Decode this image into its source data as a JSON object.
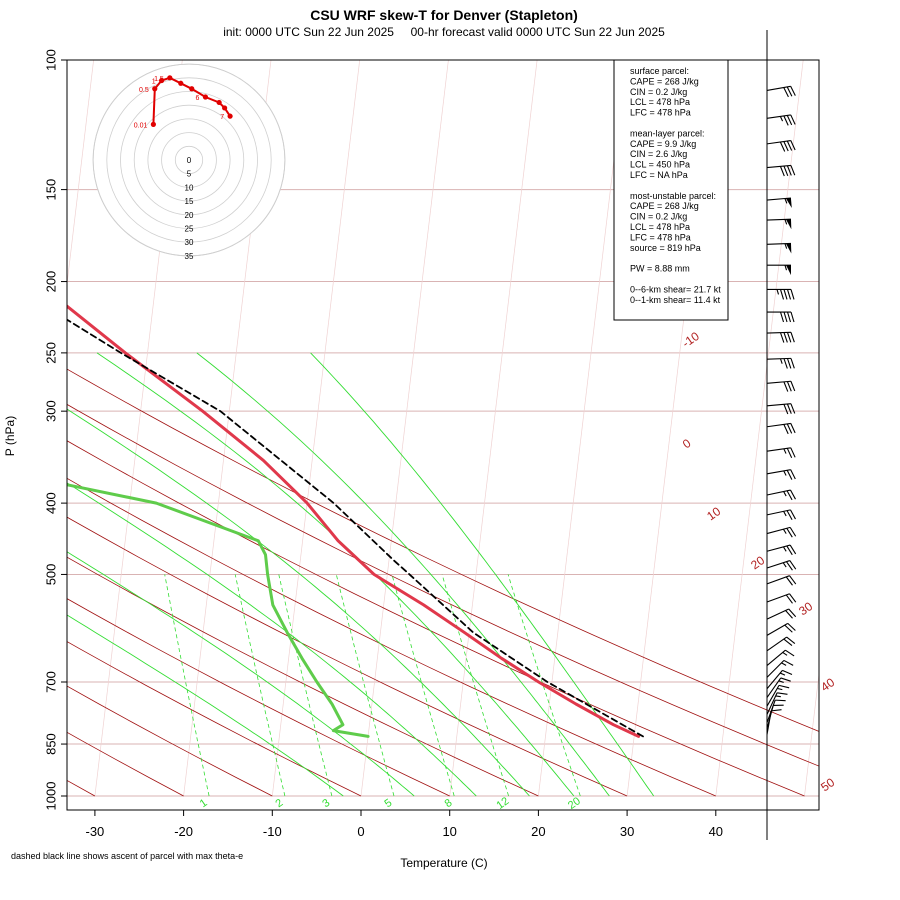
{
  "header": {
    "title": "CSU WRF skew-T for Denver (Stapleton)",
    "subtitle": "init: 0000 UTC Sun 22 Jun 2025     00-hr forecast valid 0000 UTC Sun 22 Jun 2025"
  },
  "footnote": "dashed black line shows ascent of parcel with max theta-e",
  "colors": {
    "temperature": "#e0384b",
    "dewpoint": "#5fcc4b",
    "parcel": "#000000",
    "isotherm": "#a01010",
    "mixing_ratio": "#33dd33",
    "moist_adiabat": "#33dd33",
    "isobar": "#d9b3b3",
    "hodograph": "#e00000"
  },
  "info_box": {
    "lines": [
      "surface parcel:",
      "CAPE = 268 J/kg",
      "CIN = 0.2 J/kg",
      "LCL = 478 hPa",
      "LFC = 478 hPa",
      "",
      "mean-layer parcel:",
      "CAPE = 9.9 J/kg",
      "CIN = 2.6 J/kg",
      "LCL = 450 hPa",
      "LFC = NA hPa",
      "",
      "most-unstable parcel:",
      "CAPE = 268 J/kg",
      "CIN = 0.2 J/kg",
      "LCL = 478 hPa",
      "LFC = 478 hPa",
      "source = 819 hPa",
      "",
      "PW =  8.88 mm",
      "",
      "0--6-km shear= 21.7 kt",
      "0--1-km shear= 11.4 kt"
    ]
  },
  "chart_data": {
    "type": "line",
    "xlabel": "Temperature (C)",
    "ylabel": "P (hPa)",
    "xlim": [
      -33,
      51
    ],
    "ylim": [
      1000,
      100
    ],
    "y_scale": "log",
    "x_ticks": [
      -30,
      -20,
      -10,
      0,
      10,
      20,
      30,
      40
    ],
    "y_ticks": [
      100,
      150,
      200,
      250,
      300,
      400,
      500,
      700,
      850,
      1000
    ],
    "isotherm_labels": [
      "-10",
      "0",
      "10",
      "20",
      "30",
      "40",
      "50"
    ],
    "mixing_ratio_labels": [
      "1",
      "2",
      "3",
      "5",
      "8",
      "12",
      "20"
    ],
    "series": [
      {
        "name": "Temperature",
        "points": [
          {
            "p": 830,
            "t": 30.5
          },
          {
            "p": 800,
            "t": 27.5
          },
          {
            "p": 750,
            "t": 23.0
          },
          {
            "p": 700,
            "t": 18.5
          },
          {
            "p": 650,
            "t": 14.0
          },
          {
            "p": 600,
            "t": 9.5
          },
          {
            "p": 550,
            "t": 4.5
          },
          {
            "p": 500,
            "t": -1.5
          },
          {
            "p": 450,
            "t": -6.0
          },
          {
            "p": 400,
            "t": -10.0
          },
          {
            "p": 350,
            "t": -15.5
          },
          {
            "p": 300,
            "t": -23.0
          },
          {
            "p": 250,
            "t": -32.5
          },
          {
            "p": 200,
            "t": -43.5
          },
          {
            "p": 180,
            "t": -50.5
          },
          {
            "p": 150,
            "t": -53.0
          },
          {
            "p": 120,
            "t": -62.0
          },
          {
            "p": 105,
            "t": -66.0
          }
        ]
      },
      {
        "name": "Dewpoint",
        "points": [
          {
            "p": 830,
            "t": 0.0
          },
          {
            "p": 815,
            "t": -4.0
          },
          {
            "p": 800,
            "t": -3.0
          },
          {
            "p": 750,
            "t": -4.5
          },
          {
            "p": 700,
            "t": -6.5
          },
          {
            "p": 650,
            "t": -8.5
          },
          {
            "p": 600,
            "t": -10.5
          },
          {
            "p": 550,
            "t": -12.5
          },
          {
            "p": 500,
            "t": -13.5
          },
          {
            "p": 470,
            "t": -14.0
          },
          {
            "p": 450,
            "t": -15.0
          },
          {
            "p": 400,
            "t": -27.0
          },
          {
            "p": 350,
            "t": -51.0
          },
          {
            "p": 320,
            "t": -58.0
          },
          {
            "p": 300,
            "t": -59.0
          },
          {
            "p": 250,
            "t": -65.0
          },
          {
            "p": 200,
            "t": -72.0
          },
          {
            "p": 170,
            "t": -78.0
          }
        ]
      },
      {
        "name": "Parcel",
        "points": [
          {
            "p": 830,
            "t": 31.0
          },
          {
            "p": 700,
            "t": 19.5
          },
          {
            "p": 600,
            "t": 10.5
          },
          {
            "p": 500,
            "t": 2.5
          },
          {
            "p": 478,
            "t": 0.5
          },
          {
            "p": 400,
            "t": -7.0
          },
          {
            "p": 300,
            "t": -21.0
          },
          {
            "p": 250,
            "t": -33.0
          },
          {
            "p": 200,
            "t": -47.0
          },
          {
            "p": 160,
            "t": -63.0
          }
        ]
      }
    ],
    "hodograph": {
      "rings": [
        "0",
        "5",
        "10",
        "15",
        "20",
        "25",
        "30",
        "35"
      ],
      "points": [
        {
          "label": "0.01",
          "u": -13,
          "v": 13
        },
        {
          "label": "0.5",
          "u": -12.5,
          "v": 26
        },
        {
          "label": "1",
          "u": -10,
          "v": 29
        },
        {
          "label": "1.5",
          "u": -7,
          "v": 30
        },
        {
          "label": "",
          "u": -3,
          "v": 28
        },
        {
          "label": "",
          "u": 1,
          "v": 26
        },
        {
          "label": "6",
          "u": 6,
          "v": 23
        },
        {
          "label": "",
          "u": 11,
          "v": 21
        },
        {
          "label": "",
          "u": 13,
          "v": 19
        },
        {
          "label": "7",
          "u": 15,
          "v": 16
        }
      ]
    },
    "wind_barbs": [
      {
        "p": 110,
        "speed": 30,
        "dir": 260
      },
      {
        "p": 120,
        "speed": 35,
        "dir": 262
      },
      {
        "p": 130,
        "speed": 40,
        "dir": 262
      },
      {
        "p": 140,
        "speed": 40,
        "dir": 265
      },
      {
        "p": 155,
        "speed": 55,
        "dir": 265
      },
      {
        "p": 165,
        "speed": 55,
        "dir": 268
      },
      {
        "p": 178,
        "speed": 55,
        "dir": 268
      },
      {
        "p": 190,
        "speed": 55,
        "dir": 270
      },
      {
        "p": 205,
        "speed": 45,
        "dir": 270
      },
      {
        "p": 220,
        "speed": 40,
        "dir": 270
      },
      {
        "p": 235,
        "speed": 40,
        "dir": 268
      },
      {
        "p": 255,
        "speed": 35,
        "dir": 268
      },
      {
        "p": 275,
        "speed": 30,
        "dir": 265
      },
      {
        "p": 295,
        "speed": 30,
        "dir": 265
      },
      {
        "p": 315,
        "speed": 30,
        "dir": 262
      },
      {
        "p": 340,
        "speed": 25,
        "dir": 262
      },
      {
        "p": 365,
        "speed": 25,
        "dir": 260
      },
      {
        "p": 390,
        "speed": 25,
        "dir": 258
      },
      {
        "p": 415,
        "speed": 25,
        "dir": 258
      },
      {
        "p": 440,
        "speed": 25,
        "dir": 255
      },
      {
        "p": 465,
        "speed": 25,
        "dir": 255
      },
      {
        "p": 490,
        "speed": 25,
        "dir": 252
      },
      {
        "p": 515,
        "speed": 20,
        "dir": 250
      },
      {
        "p": 545,
        "speed": 20,
        "dir": 250
      },
      {
        "p": 575,
        "speed": 20,
        "dir": 245
      },
      {
        "p": 605,
        "speed": 20,
        "dir": 240
      },
      {
        "p": 635,
        "speed": 20,
        "dir": 235
      },
      {
        "p": 665,
        "speed": 15,
        "dir": 230
      },
      {
        "p": 690,
        "speed": 15,
        "dir": 225
      },
      {
        "p": 715,
        "speed": 15,
        "dir": 220
      },
      {
        "p": 735,
        "speed": 15,
        "dir": 215
      },
      {
        "p": 755,
        "speed": 15,
        "dir": 210
      },
      {
        "p": 775,
        "speed": 15,
        "dir": 205
      },
      {
        "p": 795,
        "speed": 10,
        "dir": 200
      },
      {
        "p": 810,
        "speed": 10,
        "dir": 195
      },
      {
        "p": 825,
        "speed": 10,
        "dir": 190
      }
    ]
  }
}
